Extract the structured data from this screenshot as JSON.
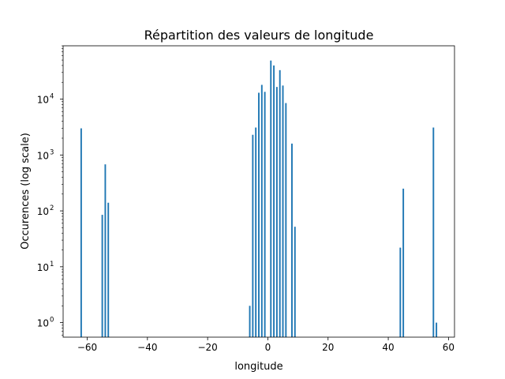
{
  "chart_data": {
    "type": "bar",
    "title": "Répartition des valeurs de longitude",
    "xlabel": "longitude",
    "ylabel": "Occurences (log scale)",
    "yscale": "log",
    "xlim": [
      -68,
      62
    ],
    "ylim": [
      0.55,
      90000
    ],
    "grid": false,
    "bar_color": "#1f77b4",
    "x_ticks": [
      -60,
      -40,
      -20,
      0,
      20,
      40,
      60
    ],
    "x_tick_labels": [
      "−60",
      "−40",
      "−20",
      "0",
      "20",
      "40",
      "60"
    ],
    "y_ticks": [
      {
        "value": 1,
        "base": "10",
        "exp": "0"
      },
      {
        "value": 10,
        "base": "10",
        "exp": "1"
      },
      {
        "value": 100,
        "base": "10",
        "exp": "2"
      },
      {
        "value": 1000,
        "base": "10",
        "exp": "3"
      },
      {
        "value": 10000,
        "base": "10",
        "exp": "4"
      }
    ],
    "bar_width": 0.5,
    "points": [
      {
        "x": -62,
        "y": 3000
      },
      {
        "x": -55,
        "y": 85
      },
      {
        "x": -54,
        "y": 680
      },
      {
        "x": -53,
        "y": 140
      },
      {
        "x": -6,
        "y": 2
      },
      {
        "x": -5,
        "y": 2300
      },
      {
        "x": -4,
        "y": 3100
      },
      {
        "x": -3,
        "y": 13000
      },
      {
        "x": -2,
        "y": 18000
      },
      {
        "x": -1,
        "y": 13500
      },
      {
        "x": 1,
        "y": 49000
      },
      {
        "x": 2,
        "y": 40000
      },
      {
        "x": 3,
        "y": 16500
      },
      {
        "x": 4,
        "y": 33000
      },
      {
        "x": 5,
        "y": 17500
      },
      {
        "x": 6,
        "y": 8500
      },
      {
        "x": 8,
        "y": 1600
      },
      {
        "x": 9,
        "y": 52
      },
      {
        "x": 44,
        "y": 22
      },
      {
        "x": 45,
        "y": 250
      },
      {
        "x": 55,
        "y": 3100
      },
      {
        "x": 56,
        "y": 1
      }
    ]
  }
}
